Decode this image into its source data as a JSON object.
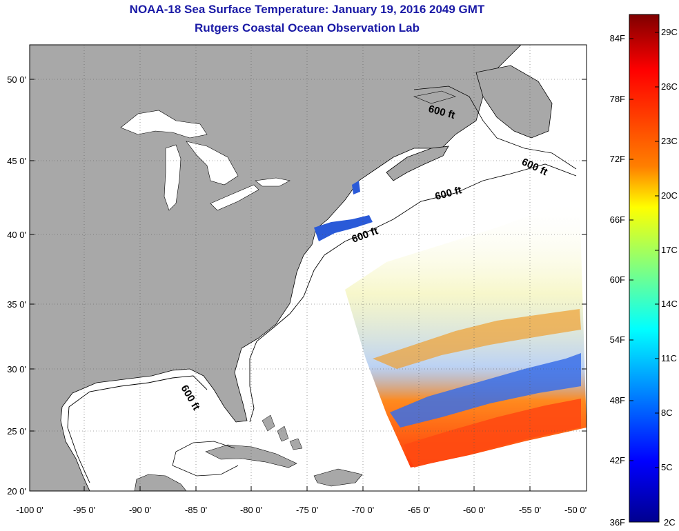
{
  "header": {
    "title": "NOAA-18 Sea Surface Temperature:  January 19, 2016 2049 GMT",
    "subtitle": "Rutgers Coastal Ocean Observation Lab"
  },
  "axes": {
    "lon_labels": [
      "-100 0'",
      "-95 0'",
      "-90 0'",
      "-85 0'",
      "-80 0'",
      "-75 0'",
      "-70 0'",
      "-65 0'",
      "-60 0'",
      "-55 0'",
      "-50 0'"
    ],
    "lat_labels": [
      "50 0'",
      "45 0'",
      "40 0'",
      "35 0'",
      "30 0'",
      "25 0'",
      "20 0'"
    ]
  },
  "map": {
    "contour_label": "600 ft",
    "land_color": "#a8a8a8",
    "ocean_color": "#ffffff"
  },
  "colorbar": {
    "fahrenheit_labels": [
      "84F",
      "78F",
      "72F",
      "66F",
      "60F",
      "54F",
      "48F",
      "42F",
      "36F"
    ],
    "celsius_labels": [
      "29C",
      "26C",
      "23C",
      "20C",
      "17C",
      "14C",
      "11C",
      "8C",
      "5C",
      "2C"
    ],
    "colors": [
      "#7f0000",
      "#ff0000",
      "#ff8000",
      "#ffff00",
      "#80ff80",
      "#00ffff",
      "#0080ff",
      "#0000ff",
      "#00008f"
    ]
  }
}
